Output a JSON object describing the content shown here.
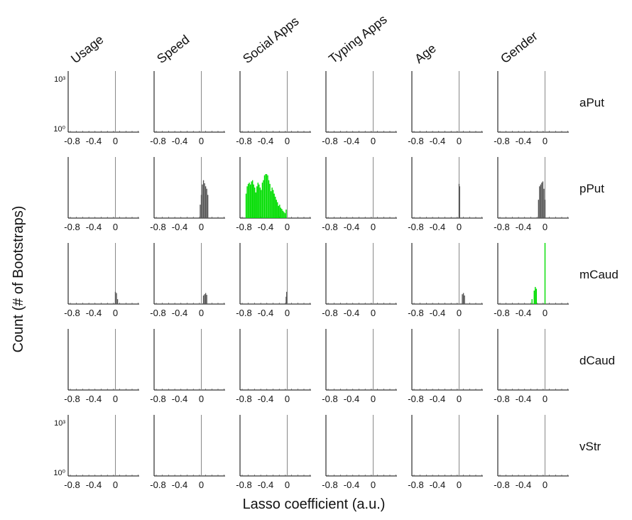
{
  "chart_data": {
    "type": "histogram-grid",
    "xlabel": "Lasso coefficient (a.u.)",
    "ylabel": "Count (# of Bootstraps)",
    "columns": [
      "Usage",
      "Speed",
      "Social Apps",
      "Typing Apps",
      "Age",
      "Gender"
    ],
    "rows": [
      "aPut",
      "pPut",
      "mCaud",
      "dCaud",
      "vStr"
    ],
    "x_ticks": [
      "-0.8",
      "-0.4",
      "0"
    ],
    "x_tick_values": [
      -0.8,
      -0.4,
      0
    ],
    "xlim": [
      -1.0,
      0.4
    ],
    "y_scale": "log",
    "y_ticks": [
      "10³",
      "10⁰"
    ],
    "y_tick_values": [
      1000,
      1
    ],
    "colors": {
      "significant": "#00dd00",
      "nonsignificant": "#555555",
      "axis": "#000000",
      "zero_line": "#888888"
    },
    "panels": [
      {
        "row": "pPut",
        "column": "Speed",
        "color": "nonsignificant",
        "bars": [
          {
            "x": -0.02,
            "h": 0.22
          },
          {
            "x": 0.0,
            "h": 0.38
          },
          {
            "x": 0.02,
            "h": 0.55
          },
          {
            "x": 0.04,
            "h": 0.62
          },
          {
            "x": 0.06,
            "h": 0.57
          },
          {
            "x": 0.08,
            "h": 0.52
          },
          {
            "x": 0.1,
            "h": 0.48
          },
          {
            "x": 0.12,
            "h": 0.38
          }
        ]
      },
      {
        "row": "pPut",
        "column": "Social Apps",
        "color": "significant",
        "bars": [
          {
            "x": -0.76,
            "h": 0.4
          },
          {
            "x": -0.74,
            "h": 0.52
          },
          {
            "x": -0.72,
            "h": 0.56
          },
          {
            "x": -0.7,
            "h": 0.58
          },
          {
            "x": -0.68,
            "h": 0.55
          },
          {
            "x": -0.66,
            "h": 0.6
          },
          {
            "x": -0.64,
            "h": 0.62
          },
          {
            "x": -0.62,
            "h": 0.55
          },
          {
            "x": -0.6,
            "h": 0.5
          },
          {
            "x": -0.58,
            "h": 0.42
          },
          {
            "x": -0.56,
            "h": 0.52
          },
          {
            "x": -0.54,
            "h": 0.58
          },
          {
            "x": -0.52,
            "h": 0.55
          },
          {
            "x": -0.5,
            "h": 0.5
          },
          {
            "x": -0.48,
            "h": 0.46
          },
          {
            "x": -0.46,
            "h": 0.58
          },
          {
            "x": -0.44,
            "h": 0.62
          },
          {
            "x": -0.42,
            "h": 0.7
          },
          {
            "x": -0.4,
            "h": 0.72
          },
          {
            "x": -0.38,
            "h": 0.72
          },
          {
            "x": -0.36,
            "h": 0.7
          },
          {
            "x": -0.34,
            "h": 0.62
          },
          {
            "x": -0.32,
            "h": 0.56
          },
          {
            "x": -0.3,
            "h": 0.44
          },
          {
            "x": -0.28,
            "h": 0.5
          },
          {
            "x": -0.26,
            "h": 0.46
          },
          {
            "x": -0.24,
            "h": 0.4
          },
          {
            "x": -0.22,
            "h": 0.35
          },
          {
            "x": -0.2,
            "h": 0.3
          },
          {
            "x": -0.18,
            "h": 0.26
          },
          {
            "x": -0.16,
            "h": 0.2
          },
          {
            "x": -0.14,
            "h": 0.22
          },
          {
            "x": -0.12,
            "h": 0.17
          },
          {
            "x": -0.1,
            "h": 0.15
          },
          {
            "x": -0.08,
            "h": 0.12
          },
          {
            "x": -0.06,
            "h": 0.1
          },
          {
            "x": -0.04,
            "h": 0.08
          },
          {
            "x": -0.02,
            "h": 0.14
          }
        ]
      },
      {
        "row": "pPut",
        "column": "Age",
        "color": "nonsignificant",
        "bars": [
          {
            "x": 0.0,
            "h": 0.56
          },
          {
            "x": 0.01,
            "h": 0.52
          }
        ]
      },
      {
        "row": "pPut",
        "column": "Gender",
        "color": "nonsignificant",
        "bars": [
          {
            "x": -0.12,
            "h": 0.3
          },
          {
            "x": -0.1,
            "h": 0.52
          },
          {
            "x": -0.08,
            "h": 0.55
          },
          {
            "x": -0.06,
            "h": 0.58
          },
          {
            "x": -0.04,
            "h": 0.6
          },
          {
            "x": -0.02,
            "h": 0.48
          },
          {
            "x": 0.0,
            "h": 0.3
          }
        ]
      },
      {
        "row": "mCaud",
        "column": "Usage",
        "color": "nonsignificant",
        "bars": [
          {
            "x": 0.0,
            "h": 0.2
          },
          {
            "x": 0.02,
            "h": 0.18
          },
          {
            "x": 0.04,
            "h": 0.08
          }
        ]
      },
      {
        "row": "mCaud",
        "column": "Speed",
        "color": "nonsignificant",
        "bars": [
          {
            "x": 0.04,
            "h": 0.14
          },
          {
            "x": 0.06,
            "h": 0.16
          },
          {
            "x": 0.08,
            "h": 0.18
          },
          {
            "x": 0.1,
            "h": 0.15
          }
        ]
      },
      {
        "row": "mCaud",
        "column": "Social Apps",
        "color": "nonsignificant",
        "bars": [
          {
            "x": -0.02,
            "h": 0.12
          },
          {
            "x": -0.01,
            "h": 0.2
          }
        ]
      },
      {
        "row": "mCaud",
        "column": "Age",
        "color": "nonsignificant",
        "bars": [
          {
            "x": 0.06,
            "h": 0.16
          },
          {
            "x": 0.08,
            "h": 0.18
          },
          {
            "x": 0.1,
            "h": 0.14
          }
        ]
      },
      {
        "row": "mCaud",
        "column": "Gender",
        "color": "significant",
        "bars": [
          {
            "x": -0.24,
            "h": 0.08
          },
          {
            "x": -0.2,
            "h": 0.22
          },
          {
            "x": -0.18,
            "h": 0.28
          },
          {
            "x": -0.16,
            "h": 0.25
          },
          {
            "x": 0.0,
            "h": 1.0
          }
        ]
      }
    ]
  }
}
